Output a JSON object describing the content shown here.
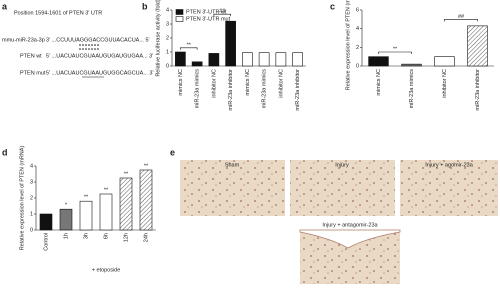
{
  "panel_labels": [
    "a",
    "b",
    "c",
    "d",
    "e"
  ],
  "panel_a": {
    "title": "Position 1594-1601 of PTEN 3' UTR",
    "rows": [
      {
        "name": "mmu-miR-23a-3p",
        "sequence": "3' ...CCUUUAGGGACCGUUACACUA... 5'"
      },
      {
        "name": "PTEN wt",
        "sequence": "5' ...UACUAUCGUAAUGUGAUGUGAA... 3'"
      },
      {
        "name": "PTEN mut",
        "sequence": "5' ...UACUAUCGUAAUGUGGCAGCUA... 3'"
      }
    ]
  },
  "chart_data": [
    {
      "type": "bar",
      "ylabel": "Relative luciferase activity (fold)",
      "categories": [
        "mimics NC",
        "miR-23a mimics",
        "inhibitor NC",
        "miR-23a inhibitor",
        "mimics NC",
        "miR-23a mimics",
        "inhibitor NC",
        "miR-23a inhibitor"
      ],
      "series": [
        {
          "name": "PTEN 3'-UTR wt",
          "color": "#111111",
          "values": [
            1.0,
            0.3,
            0.9,
            3.2,
            null,
            null,
            null,
            null
          ]
        },
        {
          "name": "PTEN 3'-UTR mut",
          "color": "#ffffff",
          "values": [
            null,
            null,
            null,
            null,
            0.95,
            0.95,
            0.95,
            0.95
          ]
        }
      ],
      "ylim": [
        0,
        4
      ],
      "yticks": [
        0,
        1,
        2,
        3,
        4
      ],
      "legend": "upper left",
      "annotations": [
        "**",
        "##"
      ]
    },
    {
      "type": "bar",
      "ylabel": "Relative expression level of PTEN (mRNA)",
      "categories": [
        "mimics NC",
        "miR-23a mimics",
        "inhibitor NC",
        "miR-23a inhibitor"
      ],
      "values": [
        1.0,
        0.2,
        1.0,
        4.3
      ],
      "colors": [
        "#111111",
        "#777777",
        "#ffffff",
        "#ffffff"
      ],
      "hatch": [
        false,
        false,
        false,
        true
      ],
      "ylim": [
        0,
        6
      ],
      "yticks": [
        0,
        2,
        4,
        6
      ],
      "annotations": [
        "**",
        "##"
      ]
    },
    {
      "type": "bar",
      "ylabel": "Relative expression level of PTEN (mRNA)",
      "xlabel": "+ etoposide",
      "categories": [
        "Control",
        "1h",
        "3h",
        "6h",
        "12h",
        "24h"
      ],
      "values": [
        1.0,
        1.3,
        1.8,
        2.25,
        3.25,
        3.75
      ],
      "colors": [
        "#111111",
        "#777777",
        "#ffffff",
        "#ffffff",
        "#ffffff",
        "#ffffff"
      ],
      "hatch": [
        false,
        false,
        false,
        false,
        true,
        true
      ],
      "star_labels": [
        null,
        "*",
        "**",
        "**",
        "**",
        "**"
      ],
      "ylim": [
        0,
        4
      ],
      "yticks": [
        0,
        1,
        2,
        3,
        4
      ]
    }
  ],
  "panel_e": {
    "images": [
      "Sham",
      "Injury",
      "Injury + agomir-23a",
      "Injury + antagomir-23a"
    ]
  }
}
